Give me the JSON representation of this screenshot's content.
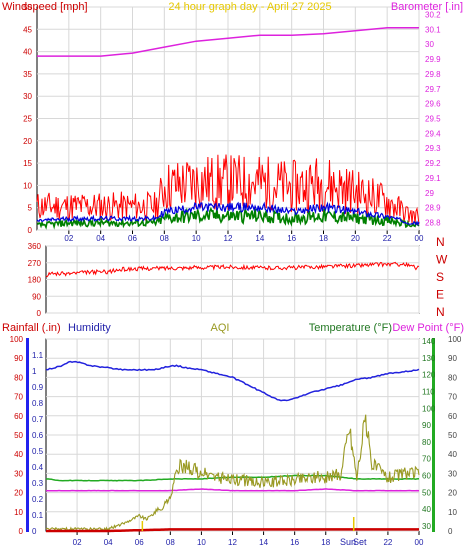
{
  "header": {
    "title": "24 hour graph day - April 27 2025"
  },
  "chart_data": [
    {
      "id": "wind_baro",
      "type": "line",
      "left_axis_label": "Windspeed [mph]",
      "right_axis_label": "Barometer [.in]",
      "x_ticks": [
        "02",
        "04",
        "06",
        "08",
        "10",
        "12",
        "14",
        "16",
        "18",
        "20",
        "22",
        "00"
      ],
      "left_ticks": [
        0,
        5,
        10,
        15,
        20,
        25,
        30,
        35,
        40,
        45,
        50
      ],
      "left_ylim": [
        0,
        50
      ],
      "right_ticks": [
        "28.8",
        "28.9",
        "29",
        "29.1",
        "29.2",
        "29.3",
        "29.4",
        "29.5",
        "29.6",
        "29.7",
        "29.8",
        "29.9",
        "30",
        "30.1",
        "30.2"
      ],
      "right_ylim": [
        28.75,
        30.25
      ],
      "colors": {
        "gust": "#ff0000",
        "wind": "#0000dd",
        "avg": "#008000",
        "baro": "#dd22dd"
      },
      "series": [
        {
          "name": "Barometer",
          "axis": "right",
          "color": "#dd22dd",
          "x": [
            0,
            2,
            4,
            6,
            8,
            10,
            12,
            14,
            16,
            18,
            20,
            22,
            24
          ],
          "values": [
            29.92,
            29.92,
            29.92,
            29.94,
            29.98,
            30.02,
            30.04,
            30.06,
            30.06,
            30.07,
            30.09,
            30.11,
            30.11
          ]
        }
      ],
      "wind_envelope": {
        "x": [
          0,
          2,
          4,
          6,
          7.5,
          8,
          10,
          12,
          14,
          16,
          18,
          20,
          22,
          23.5,
          24
        ],
        "gust": [
          5,
          5,
          5,
          5,
          5,
          9,
          10,
          10,
          10,
          9,
          10,
          8,
          6,
          3,
          3
        ],
        "wind": [
          2,
          2.5,
          2.5,
          2.5,
          2.5,
          4,
          5,
          5,
          5,
          4,
          5,
          4,
          3,
          1.5,
          1.5
        ],
        "avg": [
          1,
          1.5,
          1.5,
          1.5,
          1.5,
          2.5,
          3,
          3,
          3,
          2.5,
          3,
          2.5,
          2,
          1,
          1
        ]
      }
    },
    {
      "id": "wind_dir",
      "type": "line",
      "left_ticks": [
        0,
        90,
        180,
        270,
        360
      ],
      "left_ylim": [
        0,
        360
      ],
      "compass_labels": [
        "N",
        "W",
        "S",
        "E",
        "N"
      ],
      "x_ticks": [
        "02",
        "04",
        "06",
        "08",
        "10",
        "12",
        "14",
        "16",
        "18",
        "20",
        "22",
        "00"
      ],
      "color": "#ff0000",
      "series": [
        {
          "name": "Wind Direction",
          "color": "#ff0000",
          "x": [
            0,
            0.5,
            1,
            2,
            3,
            4,
            5,
            6,
            8,
            10,
            12,
            14,
            16,
            18,
            20,
            21,
            22,
            23,
            24
          ],
          "values": [
            200,
            215,
            210,
            215,
            220,
            222,
            235,
            238,
            242,
            245,
            248,
            242,
            244,
            250,
            255,
            260,
            262,
            262,
            240
          ]
        }
      ]
    },
    {
      "id": "rain_temp",
      "type": "line",
      "labels": {
        "rain": "Rainfall (.in)",
        "humidity": "Humidity",
        "aqi": "AQI",
        "temp": "Temperature (°F)",
        "dew": "Dew Point (°F)"
      },
      "left_ticks_humidity": [
        0,
        10,
        20,
        30,
        40,
        50,
        60,
        70,
        80,
        90,
        100
      ],
      "left_ticks_rain": [
        "0",
        "0.1",
        "0.2",
        "0.3",
        "0.4",
        "0.5",
        "0.6",
        "0.7",
        "0.8",
        "0.9",
        "1",
        "1.1"
      ],
      "right_ticks_temp": [
        30,
        40,
        50,
        60,
        70,
        80,
        90,
        100,
        110,
        120,
        130,
        140
      ],
      "right_ticks_aqi": [
        0,
        10,
        20,
        30,
        40,
        50,
        60,
        70,
        80,
        90,
        100
      ],
      "x_ticks": [
        "02",
        "04",
        "06",
        "08",
        "10",
        "12",
        "14",
        "16",
        "18",
        "20",
        "22",
        "00"
      ],
      "sun_labels": [
        "Sun",
        "Set"
      ],
      "colors": {
        "humidity": "#2222dd",
        "temp": "#22aa22",
        "dew": "#dd22dd",
        "aqi": "#999922",
        "rain": "#cc0000"
      },
      "series": [
        {
          "name": "Humidity",
          "color": "#2222dd",
          "axis": "humidity",
          "x": [
            0,
            0.5,
            1,
            1.5,
            2,
            3,
            4,
            5,
            6,
            7,
            8,
            8.5,
            9,
            10,
            11,
            12,
            13,
            14,
            14.5,
            15,
            15.5,
            16,
            17,
            18,
            19,
            20,
            21,
            22,
            23,
            24
          ],
          "values": [
            84,
            85,
            86,
            88,
            88,
            86,
            85,
            84,
            84,
            84,
            86,
            86,
            85,
            84,
            82,
            80,
            76,
            72,
            70,
            68,
            68,
            69,
            72,
            74,
            76,
            79,
            80,
            82,
            83,
            84
          ]
        },
        {
          "name": "Temperature",
          "color": "#22aa22",
          "axis": "temp",
          "x": [
            0,
            1,
            2,
            4,
            6,
            8,
            10,
            12,
            14,
            16,
            17,
            18,
            19,
            20,
            22,
            24
          ],
          "values": [
            58,
            57,
            57,
            57,
            57,
            58,
            58,
            59,
            59,
            60,
            60,
            60,
            59,
            58,
            58,
            58
          ]
        },
        {
          "name": "Dew Point",
          "color": "#dd22dd",
          "axis": "temp",
          "x": [
            0,
            2,
            4,
            6,
            8,
            10,
            12,
            14,
            16,
            18,
            20,
            22,
            24
          ],
          "values": [
            51,
            51,
            51,
            51,
            51,
            52,
            51,
            51,
            51,
            52,
            51,
            51,
            51
          ]
        },
        {
          "name": "AQI",
          "color": "#999922",
          "axis": "aqi",
          "x": [
            0,
            2,
            4,
            5,
            6,
            6.5,
            7,
            7.5,
            8,
            8.5,
            9,
            10,
            11,
            12,
            14,
            16,
            17,
            18,
            19,
            19.5,
            20,
            20.5,
            21,
            22,
            23,
            24
          ],
          "values": [
            1,
            1,
            1,
            4,
            8,
            6,
            10,
            12,
            18,
            33,
            34,
            30,
            28,
            27,
            25,
            27,
            28,
            28,
            30,
            55,
            28,
            58,
            35,
            28,
            30,
            30
          ]
        },
        {
          "name": "Rainfall",
          "color": "#cc0000",
          "axis": "rain",
          "x": [
            0,
            4,
            8,
            12,
            16,
            20,
            24
          ],
          "values": [
            0,
            0,
            0.01,
            0.01,
            0.01,
            0.01,
            0.01
          ]
        }
      ]
    }
  ]
}
